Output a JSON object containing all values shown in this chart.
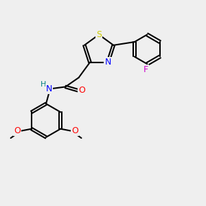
{
  "bg_color": "#efefef",
  "bond_color": "#000000",
  "bond_width": 1.5,
  "atom_colors": {
    "S": "#cccc00",
    "N": "#0000ff",
    "O": "#ff0000",
    "F": "#cc00cc",
    "C": "#000000",
    "H": "#008080"
  },
  "font_size": 9,
  "fig_size": [
    3.0,
    3.0
  ],
  "dpi": 100
}
